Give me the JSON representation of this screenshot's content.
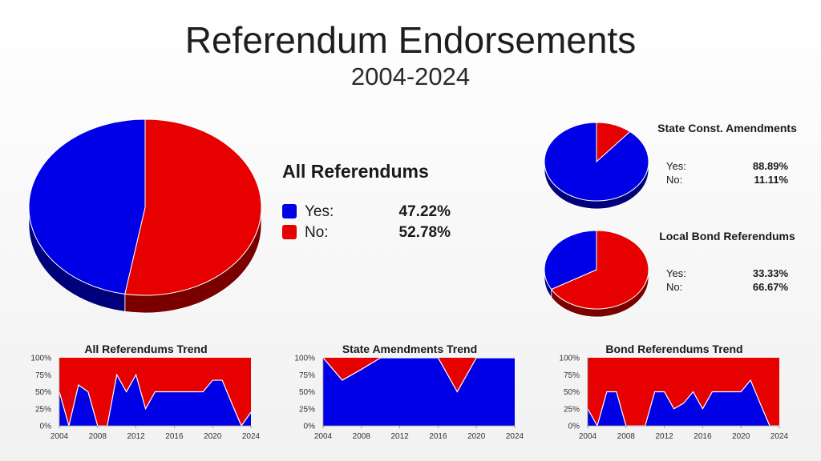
{
  "header": {
    "title": "Referendum Endorsements",
    "subtitle": "2004-2024"
  },
  "colors": {
    "yes": "#0000e6",
    "no": "#e60000",
    "yes_dark": "#00007a",
    "no_dark": "#7a0000"
  },
  "legend": {
    "yes_label": "Yes:",
    "no_label": "No:"
  },
  "chart_data": [
    {
      "type": "pie",
      "title": "All Referendums",
      "labels": [
        "Yes",
        "No"
      ],
      "values": [
        47.22,
        52.78
      ],
      "display": [
        "47.22%",
        "52.78%"
      ]
    },
    {
      "type": "pie",
      "title": "State Const. Amendments",
      "labels": [
        "Yes",
        "No"
      ],
      "values": [
        88.89,
        11.11
      ],
      "display": [
        "88.89%",
        "11.11%"
      ]
    },
    {
      "type": "pie",
      "title": "Local Bond Referendums",
      "labels": [
        "Yes",
        "No"
      ],
      "values": [
        33.33,
        66.67
      ],
      "display": [
        "33.33%",
        "66.67%"
      ]
    },
    {
      "type": "area",
      "title": "All Referendums Trend",
      "stacked": true,
      "ylim": [
        0,
        100
      ],
      "yticks": [
        "0%",
        "25%",
        "50%",
        "75%",
        "100%"
      ],
      "xlim": [
        2004,
        2024
      ],
      "xticks": [
        2004,
        2008,
        2012,
        2016,
        2020,
        2024
      ],
      "x": [
        2004,
        2005,
        2006,
        2007,
        2008,
        2009,
        2010,
        2011,
        2012,
        2013,
        2014,
        2015,
        2016,
        2017,
        2018,
        2019,
        2020,
        2021,
        2022,
        2023,
        2024
      ],
      "series": [
        {
          "name": "Yes",
          "values": [
            50,
            0,
            60,
            50,
            0,
            0,
            75,
            50,
            75,
            25,
            50,
            50,
            50,
            50,
            50,
            50,
            67,
            67,
            33,
            0,
            20
          ]
        }
      ]
    },
    {
      "type": "area",
      "title": "State Amendments Trend",
      "stacked": true,
      "ylim": [
        0,
        100
      ],
      "yticks": [
        "0%",
        "25%",
        "50%",
        "75%",
        "100%"
      ],
      "xlim": [
        2004,
        2024
      ],
      "xticks": [
        2004,
        2008,
        2012,
        2016,
        2020,
        2024
      ],
      "x": [
        2004,
        2006,
        2008,
        2010,
        2012,
        2014,
        2016,
        2018,
        2020,
        2022,
        2024
      ],
      "series": [
        {
          "name": "Yes",
          "values": [
            100,
            67,
            83,
            100,
            100,
            100,
            100,
            50,
            100,
            100,
            100
          ]
        }
      ]
    },
    {
      "type": "area",
      "title": "Bond Referendums Trend",
      "stacked": true,
      "ylim": [
        0,
        100
      ],
      "yticks": [
        "0%",
        "25%",
        "50%",
        "75%",
        "100%"
      ],
      "xlim": [
        2004,
        2024
      ],
      "xticks": [
        2004,
        2008,
        2012,
        2016,
        2020,
        2024
      ],
      "x": [
        2004,
        2005,
        2006,
        2007,
        2008,
        2009,
        2010,
        2011,
        2012,
        2013,
        2014,
        2015,
        2016,
        2017,
        2018,
        2019,
        2020,
        2021,
        2022,
        2023,
        2024
      ],
      "series": [
        {
          "name": "Yes",
          "values": [
            25,
            0,
            50,
            50,
            0,
            0,
            0,
            50,
            50,
            25,
            33,
            50,
            25,
            50,
            50,
            50,
            50,
            67,
            33,
            0,
            0
          ]
        }
      ]
    }
  ]
}
